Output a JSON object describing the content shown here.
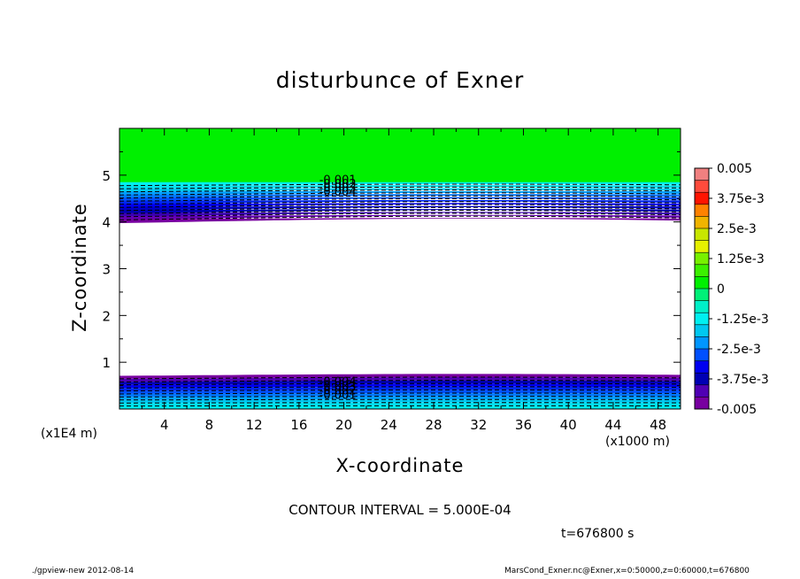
{
  "chart_data": {
    "type": "contour",
    "title": "disturbunce of Exner",
    "xlabel": "X-coordinate",
    "ylabel": "Z-coordinate",
    "x_unit_label": "(x1000 m)",
    "y_unit_label": "(x1E4 m)",
    "xlim": [
      0,
      50
    ],
    "ylim": [
      0,
      6
    ],
    "x_ticks": [
      "4",
      "8",
      "12",
      "16",
      "20",
      "24",
      "28",
      "32",
      "36",
      "40",
      "44",
      "48"
    ],
    "y_ticks": [
      "1",
      "2",
      "3",
      "4",
      "5"
    ],
    "colorbar": {
      "labels": [
        "0.005",
        "3.75e-3",
        "2.5e-3",
        "1.25e-3",
        "0",
        "-1.25e-3",
        "-2.5e-3",
        "-3.75e-3",
        "-0.005"
      ],
      "range": [
        -0.005,
        0.005
      ],
      "colors": [
        "#f08080",
        "#ff4b3c",
        "#ff1400",
        "#ff8200",
        "#f0b400",
        "#c8e600",
        "#e6f000",
        "#78f000",
        "#3cf000",
        "#00f000",
        "#00f078",
        "#00f0c8",
        "#00f0f0",
        "#00c8f0",
        "#0096ff",
        "#0050ff",
        "#0000f0",
        "#0000b4",
        "#5000b4",
        "#7800a0"
      ]
    },
    "upper_band": {
      "z_range": [
        4.0,
        4.85
      ],
      "contour_labels": [
        "-0.001",
        "-0.002",
        "-0.003",
        "-0.004"
      ],
      "above_value_color": "#00f000"
    },
    "lower_band": {
      "z_range": [
        0.0,
        0.72
      ],
      "contour_labels": [
        "-0.004",
        "-0.003",
        "-0.002",
        "-0.001"
      ]
    },
    "contour_interval": "5.000E-04"
  },
  "contour_interval_text": "CONTOUR INTERVAL = 5.000E-04",
  "time_text": "t=676800 s",
  "footer_left": "./gpview-new   2012-08-14",
  "footer_right": "MarsCond_Exner.nc@Exner,x=0:50000,z=0:60000,t=676800"
}
